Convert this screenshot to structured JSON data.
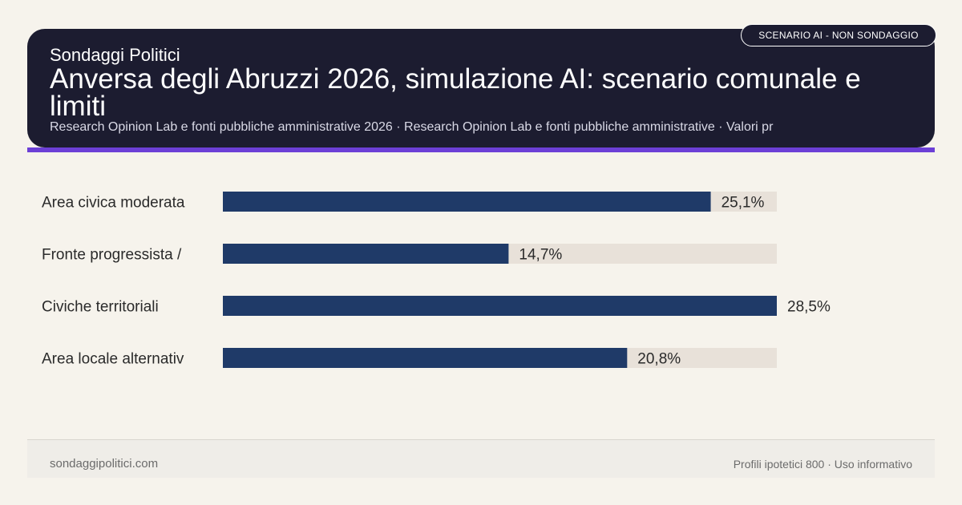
{
  "header": {
    "brand": "Sondaggi Politici",
    "title": "Anversa degli Abruzzi 2026, simulazione AI: scenario comunale e limiti",
    "subtitle": "Research Opinion Lab e fonti pubbliche amministrative 2026 · Research Opinion Lab e fonti pubbliche amministrative · Valori pr",
    "badge": "SCENARIO AI - NON SONDAGGIO"
  },
  "footer": {
    "site": "sondaggipolitici.com",
    "note": "Profili ipotetici 800 · Uso informativo"
  },
  "colors": {
    "header_bg": "#1c1c30",
    "accent": "#6c3fd6",
    "bar": "#1f3a68",
    "track": "#e8e1d9",
    "background": "#f6f3ec"
  },
  "chart_data": {
    "type": "bar",
    "orientation": "horizontal",
    "categories": [
      "Area civica moderata",
      "Fronte progressista /",
      "Civiche territoriali",
      "Area locale alternativ"
    ],
    "values": [
      25.1,
      14.7,
      28.5,
      20.8
    ],
    "value_labels": [
      "25,1%",
      "14,7%",
      "28,5%",
      "20,8%"
    ],
    "xlim": [
      0,
      28.5
    ],
    "unit": "%",
    "title": "",
    "xlabel": "",
    "ylabel": "",
    "grid": false,
    "legend": "none"
  }
}
